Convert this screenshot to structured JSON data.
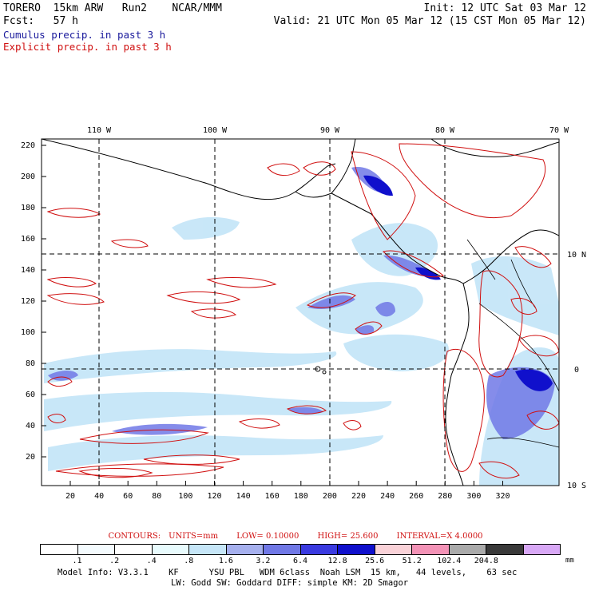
{
  "header": {
    "left_line1": "TORERO  15km ARW   Run2    NCAR/MMM",
    "right_line1": "Init: 12 UTC Sat 03 Mar 12",
    "left_line2": "Fcst:   57 h",
    "right_line2": "Valid: 21 UTC Mon 05 Mar 12 (15 CST Mon 05 Mar 12)",
    "legend_cumulus": "Cumulus precip. in past 3 h",
    "legend_explicit": "Explicit precip. in past 3 h"
  },
  "map": {
    "lon_labels": [
      "110 W",
      "100 W",
      "90 W",
      "80 W",
      "70 W"
    ],
    "lat_labels_right": [
      "10 N",
      "0",
      "10 S"
    ],
    "y_ticks": [
      "20",
      "40",
      "60",
      "80",
      "100",
      "120",
      "140",
      "160",
      "180",
      "200",
      "220"
    ],
    "x_ticks": [
      "20",
      "40",
      "60",
      "80",
      "100",
      "120",
      "140",
      "160",
      "180",
      "200",
      "220",
      "240",
      "260",
      "280",
      "300",
      "320"
    ],
    "colors": {
      "cumulus": "#1a1a9c",
      "explicit": "#d01010"
    }
  },
  "contours": {
    "label": "CONTOURS:",
    "units": "UNITS=mm",
    "low": "LOW= 0.10000",
    "high": "HIGH=  25.600",
    "interval": "INTERVAL=X  4.0000"
  },
  "color_scale": {
    "labels": [
      ".1",
      ".2",
      ".4",
      ".8",
      "1.6",
      "3.2",
      "6.4",
      "12.8",
      "25.6",
      "51.2",
      "102.4",
      "204.8"
    ],
    "colors": [
      "#ffffff",
      "#f4fbfe",
      "#ffffff",
      "#e8fbfd",
      "#c6e6f8",
      "#a6b0ee",
      "#7078e6",
      "#3a3ae0",
      "#1010cc",
      "#fad2d8",
      "#f392b6",
      "#aaaaaa",
      "#3a3a3a",
      "#d8a8f6"
    ],
    "units": "mm"
  },
  "model_info": {
    "line1": "Model Info: V3.3.1    KF      YSU PBL   WDM 6class  Noah LSM  15 km,   44 levels,    63 sec",
    "line2": "LW: Godd SW: Goddard DIFF: simple KM: 2D Smagor"
  }
}
